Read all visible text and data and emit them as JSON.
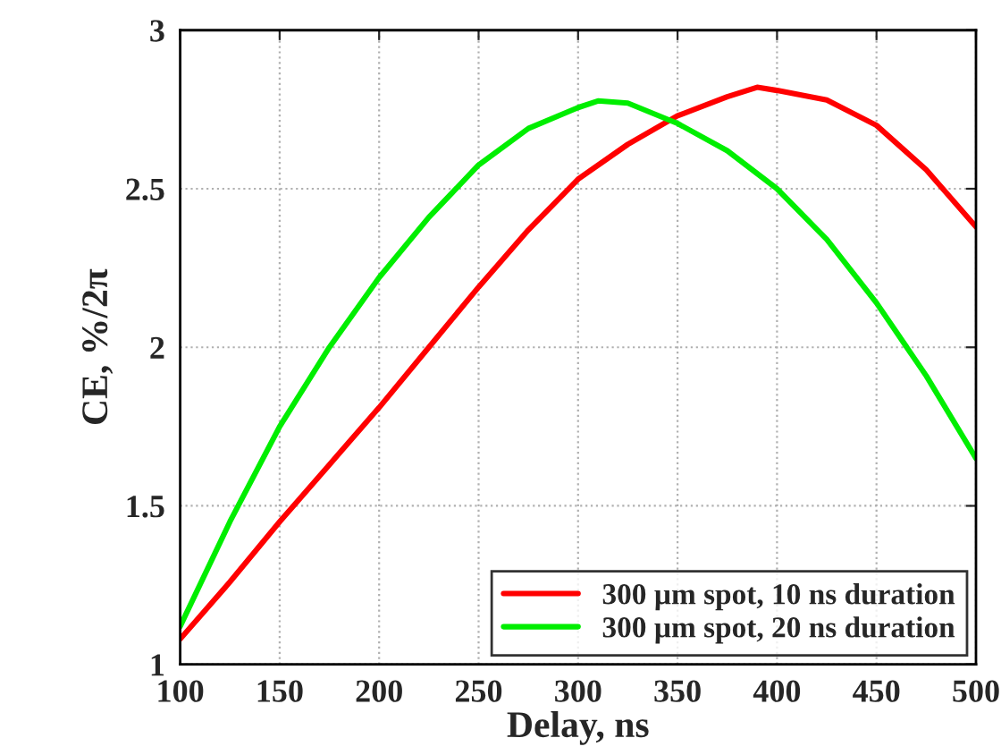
{
  "chart_data": {
    "type": "line",
    "xlabel": "Delay, ns",
    "ylabel": "CE, %/2π",
    "x": [
      100,
      125,
      150,
      175,
      200,
      225,
      250,
      275,
      300,
      325,
      350,
      375,
      390,
      400,
      425,
      450,
      475,
      500
    ],
    "series": [
      {
        "name": "300 µm spot, 10 ns duration",
        "color": "#ff0000",
        "values": [
          1.08,
          1.26,
          1.45,
          1.63,
          1.81,
          2.0,
          2.19,
          2.37,
          2.53,
          2.64,
          2.73,
          2.79,
          2.82,
          2.81,
          2.78,
          2.7,
          2.56,
          2.38
        ]
      },
      {
        "name": "300 µm spot, 20 ns duration",
        "color": "#00ee00",
        "x": [
          100,
          125,
          150,
          175,
          200,
          225,
          250,
          275,
          300,
          310,
          325,
          350,
          375,
          400,
          425,
          450,
          475,
          500
        ],
        "values": [
          1.12,
          1.45,
          1.75,
          2.0,
          2.22,
          2.41,
          2.575,
          2.69,
          2.756,
          2.777,
          2.77,
          2.706,
          2.62,
          2.5,
          2.34,
          2.14,
          1.91,
          1.65
        ]
      }
    ],
    "xlim": [
      100,
      500
    ],
    "xticks": [
      100,
      150,
      200,
      250,
      300,
      350,
      400,
      450,
      500
    ],
    "ylim": [
      1,
      3
    ],
    "yticks": [
      1,
      1.5,
      2,
      2.5,
      3
    ],
    "grid": true,
    "legend": "bottom right",
    "line_style": "solid"
  }
}
